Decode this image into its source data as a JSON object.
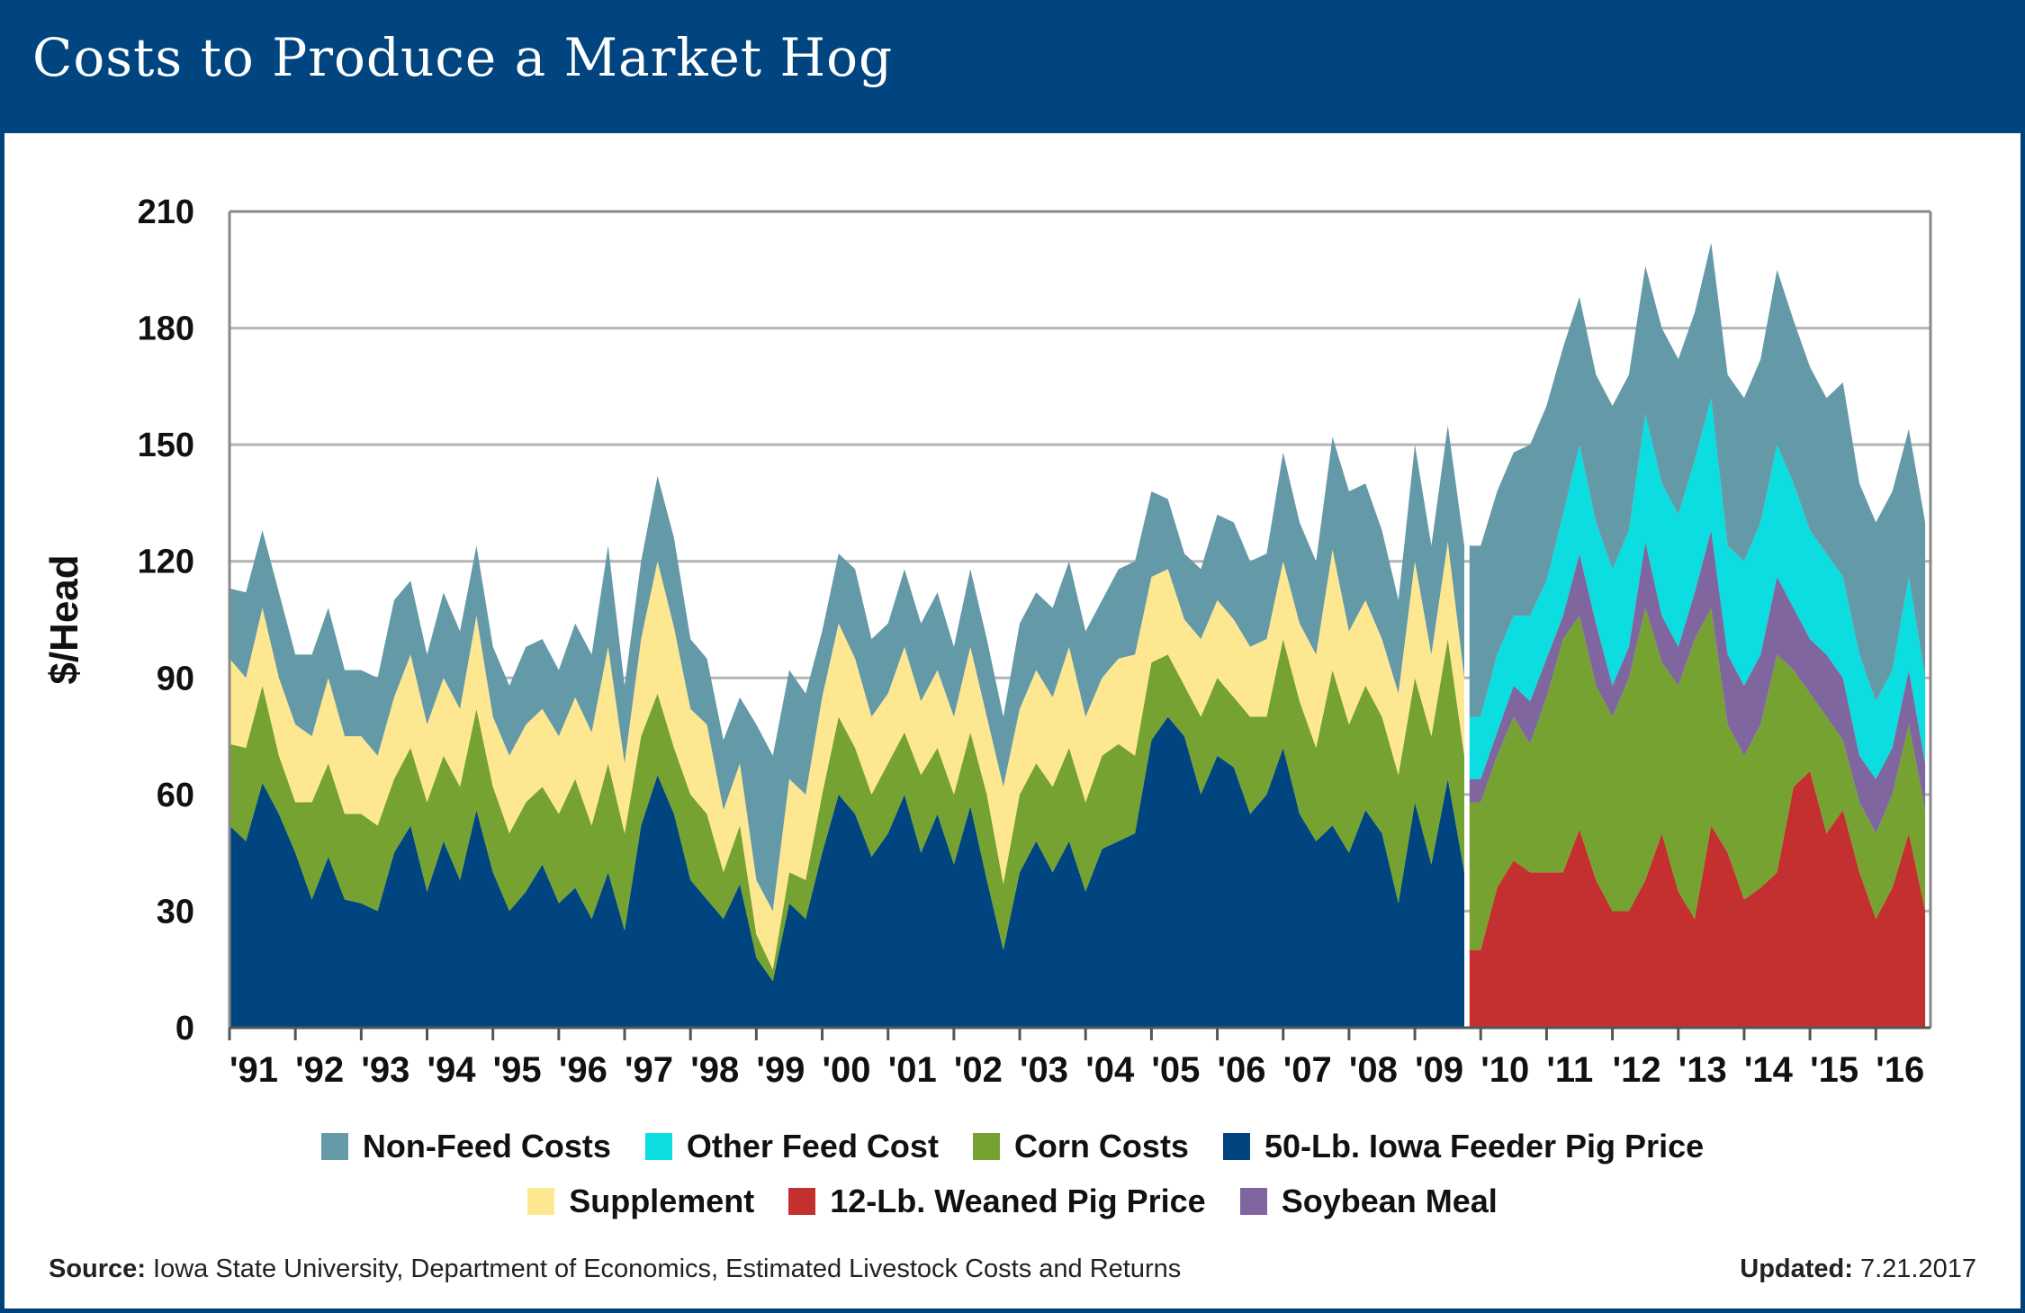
{
  "header": {
    "title": "Costs to Produce a Market Hog"
  },
  "footer": {
    "source_label": "Source:",
    "source_text": "Iowa State University, Department of Economics, Estimated Livestock Costs and Returns",
    "updated_label": "Updated:",
    "updated_text": "7.21.2017"
  },
  "legend": {
    "row1": [
      {
        "name": "Non-Feed Costs",
        "color": "#6499a8"
      },
      {
        "name": "Other Feed Cost",
        "color": "#0bdde0"
      },
      {
        "name": "Corn Costs",
        "color": "#76a231"
      },
      {
        "name": "50-Lb. Iowa Feeder Pig Price",
        "color": "#004580"
      }
    ],
    "row2": [
      {
        "name": "Supplement",
        "color": "#fde891"
      },
      {
        "name": "12-Lb. Weaned  Pig Price",
        "color": "#c4302f"
      },
      {
        "name": "Soybean Meal",
        "color": "#7f669e"
      }
    ]
  },
  "chart_data": {
    "type": "area",
    "stacked": true,
    "title": "Costs to Produce a Market Hog",
    "xlabel": "",
    "ylabel": "$/Head",
    "ylim": [
      0,
      210
    ],
    "yticks": [
      0,
      30,
      60,
      90,
      120,
      150,
      180,
      210
    ],
    "grid": true,
    "legend_position": "bottom",
    "x_tick_labels": [
      "'91",
      "'92",
      "'93",
      "'94",
      "'95",
      "'96",
      "'97",
      "'98",
      "'99",
      "'00",
      "'01",
      "'02",
      "'03",
      "'04",
      "'05",
      "'06",
      "'07",
      "'08",
      "'09",
      "'10",
      "'11",
      "'12",
      "'13",
      "'14",
      "'15",
      "'16"
    ],
    "x_start": 1991.0,
    "x_end": 2016.83,
    "sample_interval_years": 0.25,
    "break_x": 2009.83,
    "note": "Stacked totals (cumulative) sampled quarterly from Jan 1991 to Oct 2016. Through Oct 2009 the stack is 50-Lb. Iowa Feeder Pig Price + Corn Costs + Supplement + Non-Feed Costs. From Jan 2010 it is 12-Lb. Weaned Pig Price + Corn Costs + Soybean Meal + Other Feed Cost + Non-Feed Costs.",
    "period1": {
      "x": [
        1991.0,
        1991.25,
        1991.5,
        1991.75,
        1992.0,
        1992.25,
        1992.5,
        1992.75,
        1993.0,
        1993.25,
        1993.5,
        1993.75,
        1994.0,
        1994.25,
        1994.5,
        1994.75,
        1995.0,
        1995.25,
        1995.5,
        1995.75,
        1996.0,
        1996.25,
        1996.5,
        1996.75,
        1997.0,
        1997.25,
        1997.5,
        1997.75,
        1998.0,
        1998.25,
        1998.5,
        1998.75,
        1999.0,
        1999.25,
        1999.5,
        1999.75,
        2000.0,
        2000.25,
        2000.5,
        2000.75,
        2001.0,
        2001.25,
        2001.5,
        2001.75,
        2002.0,
        2002.25,
        2002.5,
        2002.75,
        2003.0,
        2003.25,
        2003.5,
        2003.75,
        2004.0,
        2004.25,
        2004.5,
        2004.75,
        2005.0,
        2005.25,
        2005.5,
        2005.75,
        2006.0,
        2006.25,
        2006.5,
        2006.75,
        2007.0,
        2007.25,
        2007.5,
        2007.75,
        2008.0,
        2008.25,
        2008.5,
        2008.75,
        2009.0,
        2009.25,
        2009.5,
        2009.75
      ],
      "series": [
        {
          "name": "50-Lb. Iowa Feeder Pig Price",
          "values": [
            52,
            48,
            63,
            55,
            45,
            33,
            44,
            33,
            32,
            30,
            45,
            52,
            35,
            48,
            38,
            56,
            40,
            30,
            35,
            42,
            32,
            36,
            28,
            40,
            25,
            52,
            65,
            55,
            38,
            33,
            28,
            37,
            18,
            12,
            32,
            28,
            45,
            60,
            55,
            44,
            50,
            60,
            45,
            55,
            42,
            57,
            38,
            20,
            40,
            48,
            40,
            48,
            35,
            46,
            48,
            50,
            74,
            80,
            75,
            60,
            70,
            67,
            55,
            60,
            72,
            55,
            48,
            52,
            45,
            56,
            50,
            32,
            58,
            42,
            64,
            40
          ]
        },
        {
          "name": "Corn Costs",
          "values": [
            73,
            72,
            88,
            70,
            58,
            58,
            68,
            55,
            55,
            52,
            64,
            72,
            58,
            70,
            62,
            82,
            62,
            50,
            58,
            62,
            55,
            64,
            52,
            68,
            50,
            75,
            86,
            72,
            60,
            55,
            40,
            52,
            24,
            15,
            40,
            38,
            60,
            80,
            72,
            60,
            68,
            76,
            65,
            72,
            60,
            76,
            60,
            37,
            60,
            68,
            62,
            72,
            58,
            70,
            73,
            70,
            94,
            96,
            88,
            80,
            90,
            85,
            80,
            80,
            100,
            84,
            72,
            92,
            78,
            88,
            80,
            65,
            90,
            75,
            100,
            70
          ]
        },
        {
          "name": "Supplement",
          "values": [
            95,
            90,
            108,
            90,
            78,
            75,
            90,
            75,
            75,
            70,
            85,
            96,
            78,
            90,
            82,
            106,
            80,
            70,
            78,
            82,
            75,
            85,
            76,
            98,
            68,
            100,
            120,
            103,
            82,
            78,
            56,
            68,
            38,
            30,
            64,
            60,
            85,
            104,
            95,
            80,
            86,
            98,
            84,
            92,
            80,
            98,
            80,
            62,
            82,
            92,
            85,
            98,
            80,
            90,
            95,
            96,
            116,
            118,
            105,
            100,
            110,
            105,
            98,
            100,
            120,
            104,
            96,
            123,
            102,
            110,
            100,
            86,
            120,
            96,
            125,
            90
          ]
        },
        {
          "name": "Non-Feed Costs",
          "values": [
            113,
            112,
            128,
            112,
            96,
            96,
            108,
            92,
            92,
            90,
            110,
            115,
            96,
            112,
            102,
            124,
            98,
            88,
            98,
            100,
            92,
            104,
            96,
            124,
            88,
            120,
            142,
            126,
            100,
            95,
            74,
            85,
            78,
            70,
            92,
            86,
            102,
            122,
            118,
            100,
            104,
            118,
            104,
            112,
            98,
            118,
            100,
            80,
            104,
            112,
            108,
            120,
            102,
            110,
            118,
            120,
            138,
            136,
            122,
            118,
            132,
            130,
            120,
            122,
            148,
            130,
            120,
            152,
            138,
            140,
            128,
            110,
            150,
            124,
            155,
            124
          ]
        }
      ]
    },
    "period2": {
      "x": [
        2010.0,
        2010.25,
        2010.5,
        2010.75,
        2011.0,
        2011.25,
        2011.5,
        2011.75,
        2012.0,
        2012.25,
        2012.5,
        2012.75,
        2013.0,
        2013.25,
        2013.5,
        2013.75,
        2014.0,
        2014.25,
        2014.5,
        2014.75,
        2015.0,
        2015.25,
        2015.5,
        2015.75,
        2016.0,
        2016.25,
        2016.5,
        2016.75
      ],
      "series": [
        {
          "name": "12-Lb. Weaned  Pig Price",
          "values": [
            20,
            36,
            43,
            40,
            40,
            40,
            51,
            38,
            30,
            30,
            38,
            50,
            35,
            28,
            52,
            45,
            33,
            36,
            40,
            62,
            66,
            50,
            56,
            40,
            28,
            36,
            50,
            30
          ]
        },
        {
          "name": "Corn Costs",
          "values": [
            58,
            70,
            80,
            73,
            85,
            100,
            106,
            88,
            80,
            90,
            108,
            94,
            88,
            100,
            108,
            78,
            70,
            78,
            96,
            92,
            86,
            80,
            74,
            58,
            50,
            60,
            78,
            56
          ]
        },
        {
          "name": "Soybean Meal",
          "values": [
            64,
            76,
            88,
            84,
            95,
            106,
            122,
            104,
            88,
            98,
            125,
            106,
            98,
            112,
            128,
            96,
            88,
            96,
            116,
            108,
            100,
            96,
            90,
            70,
            64,
            72,
            92,
            68
          ]
        },
        {
          "name": "Other Feed Cost",
          "values": [
            80,
            96,
            106,
            106,
            115,
            132,
            150,
            130,
            118,
            128,
            158,
            140,
            132,
            146,
            162,
            124,
            120,
            130,
            150,
            140,
            128,
            122,
            116,
            96,
            84,
            92,
            116,
            90
          ]
        },
        {
          "name": "Non-Feed Costs",
          "values": [
            124,
            138,
            148,
            150,
            160,
            175,
            188,
            168,
            160,
            168,
            196,
            180,
            172,
            184,
            202,
            168,
            162,
            172,
            195,
            182,
            170,
            162,
            166,
            140,
            130,
            138,
            154,
            130
          ]
        }
      ]
    }
  }
}
